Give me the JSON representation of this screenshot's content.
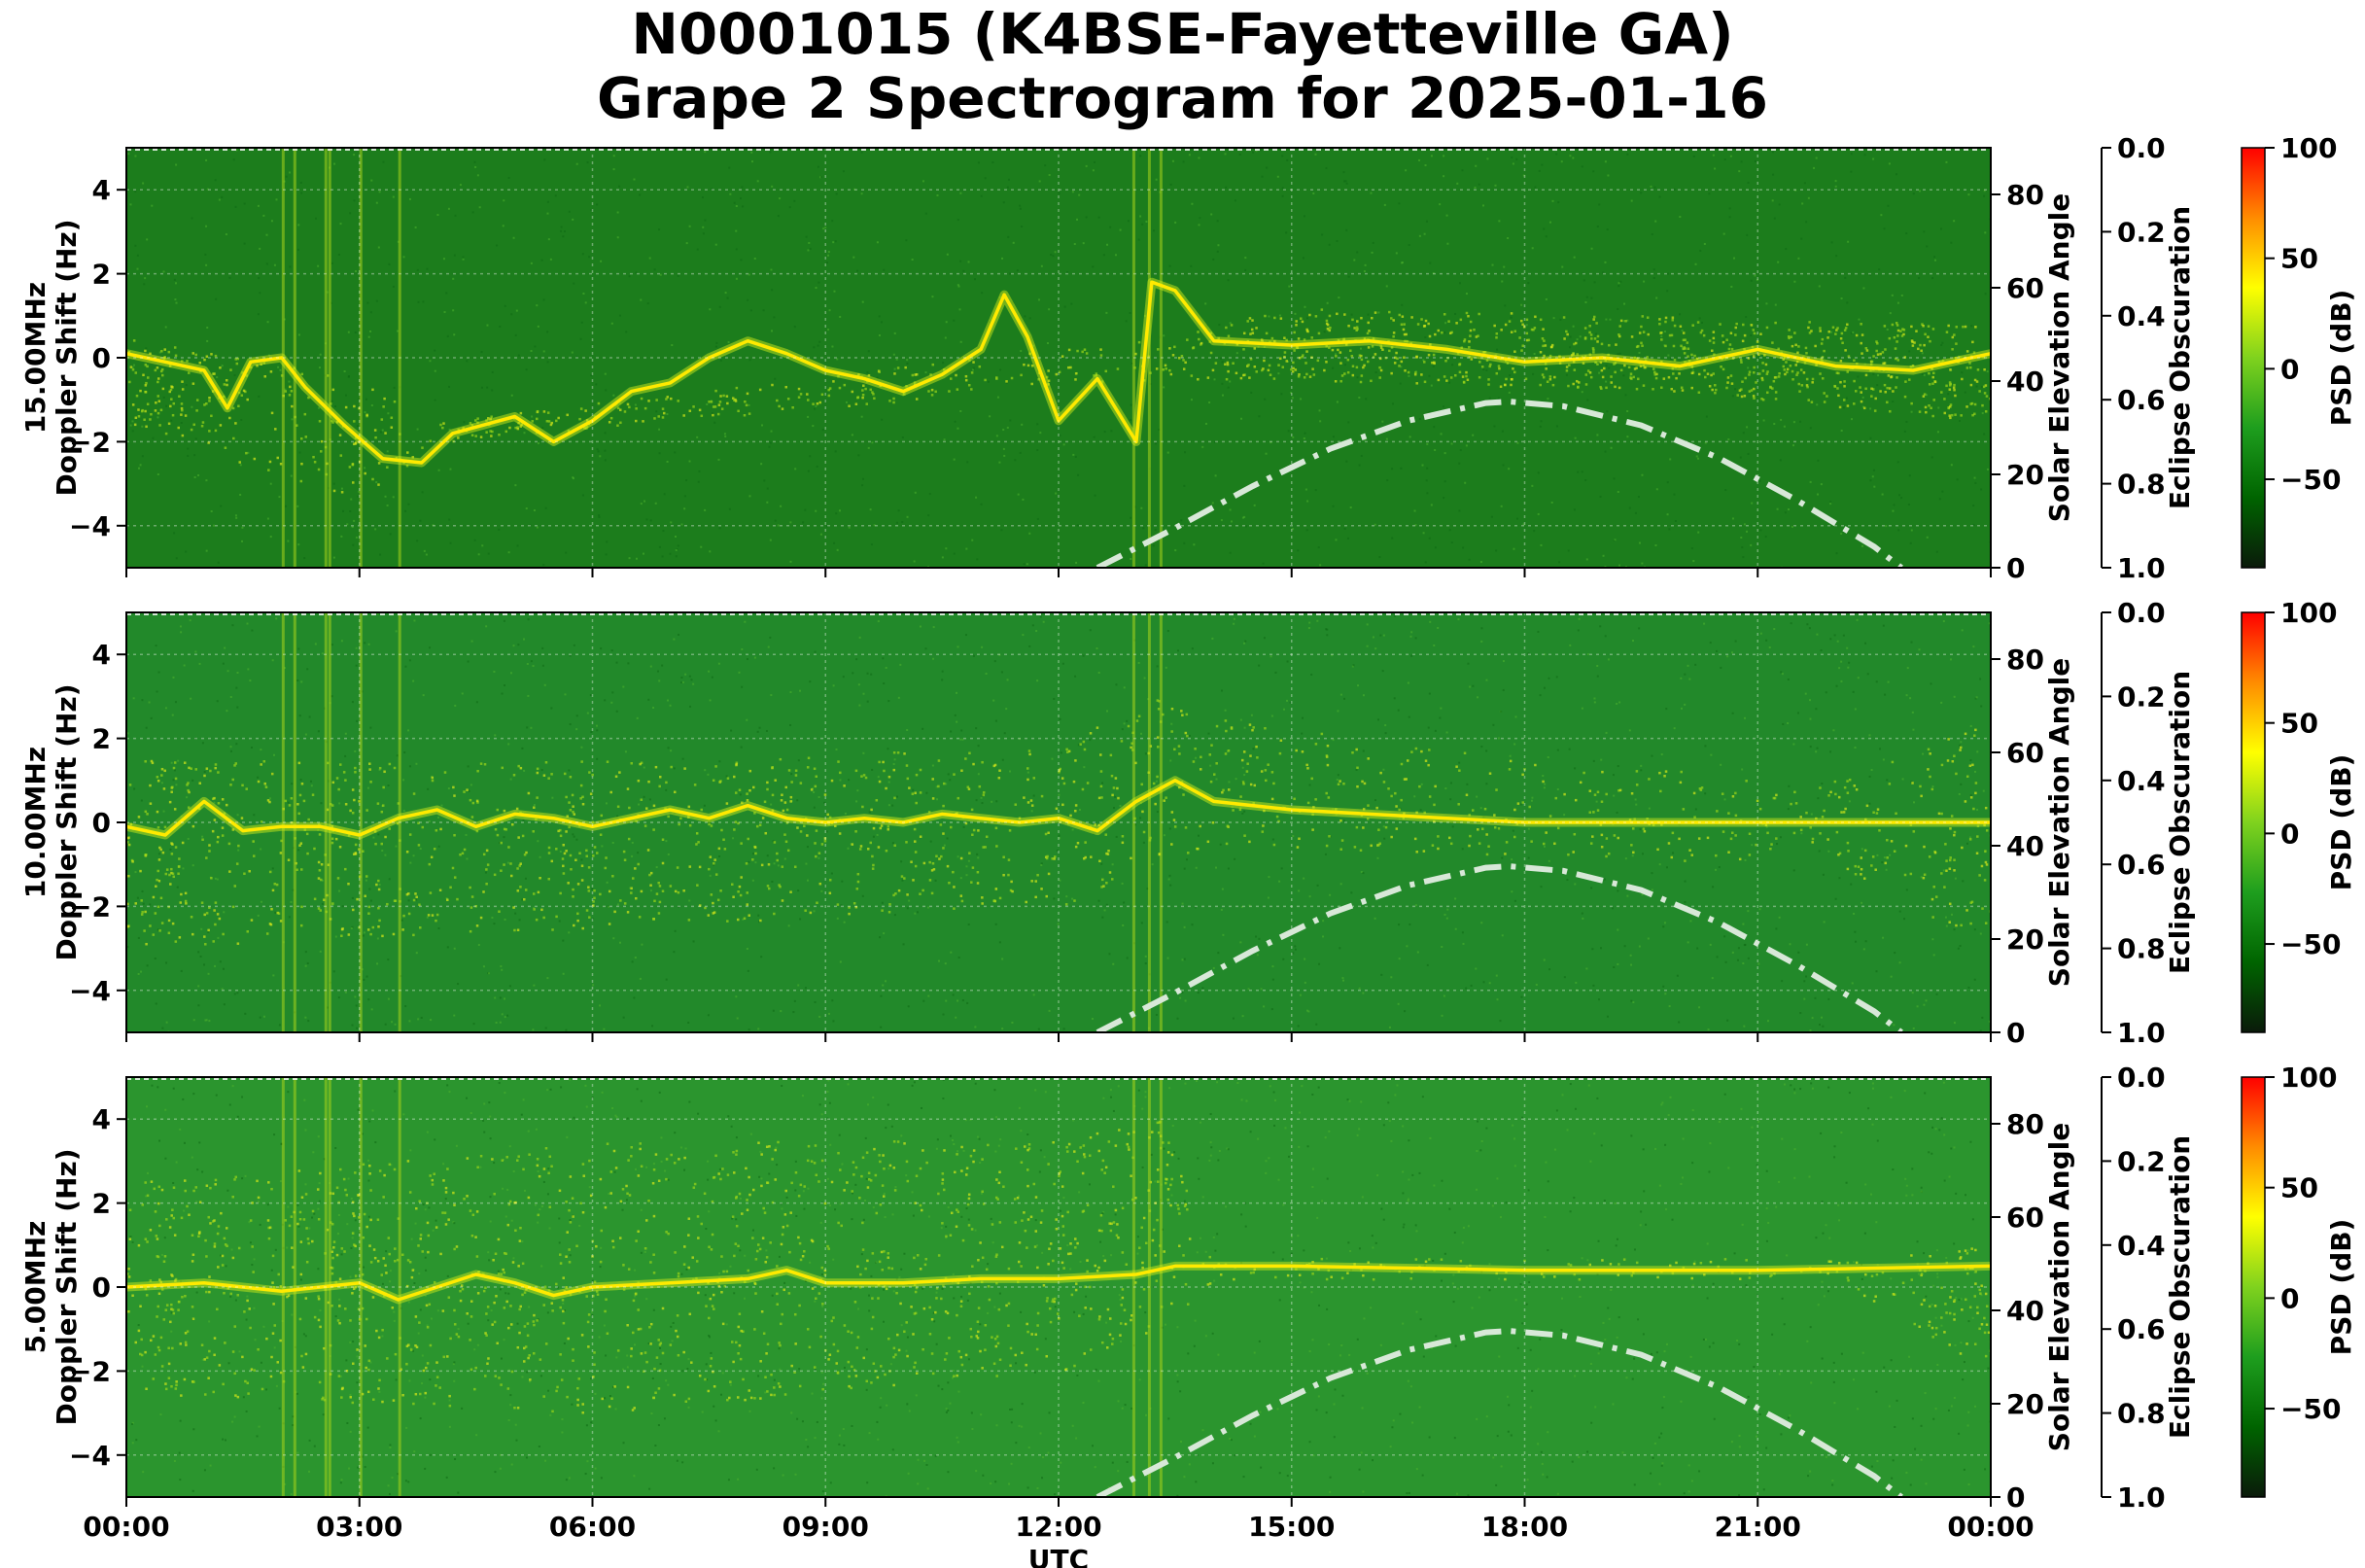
{
  "chart_data": {
    "type": "heatmap",
    "title": [
      "N0001015 (K4BSE-Fayetteville GA)",
      "Grape 2 Spectrogram for 2025-01-16"
    ],
    "xlabel": "UTC",
    "x_ticks": [
      "00:00",
      "03:00",
      "06:00",
      "09:00",
      "12:00",
      "15:00",
      "18:00",
      "21:00",
      "00:00"
    ],
    "xlim_hours": [
      0,
      24
    ],
    "ylabel": "Doppler Shift (Hz)",
    "ylim": [
      -5,
      5
    ],
    "y_ticks": [
      "4",
      "2",
      "0",
      "−2",
      "−4"
    ],
    "right_axis": {
      "label": "Solar Elevation Angle",
      "ylim": [
        0,
        90
      ],
      "ticks": [
        "80",
        "60",
        "40",
        "20",
        "0"
      ]
    },
    "eclipse_axis": {
      "label": "Eclipse Obscuration",
      "ylim": [
        1.0,
        0.0
      ],
      "ticks": [
        "0.0",
        "0.2",
        "0.4",
        "0.6",
        "0.8",
        "1.0"
      ]
    },
    "colorbar": {
      "label": "PSD (dB)",
      "range": [
        -90,
        100
      ],
      "ticks": [
        "100",
        "50",
        "0",
        "−50"
      ],
      "colors": [
        "#0a1a0a",
        "#006400",
        "#1e9e1e",
        "#7fd21e",
        "#ffff00",
        "#ff8c00",
        "#ff0000"
      ]
    },
    "grid": true,
    "solar_elevation": {
      "style": "dash-dot",
      "color": "#d8e8d8",
      "x_hours": [
        12.5,
        13.5,
        14.5,
        15.5,
        16.5,
        17.5,
        17.8,
        18.5,
        19.5,
        20.5,
        21.5,
        22.5,
        22.85
      ],
      "y_deg": [
        0,
        8.5,
        17.5,
        25.5,
        31.5,
        35.3,
        35.6,
        34.6,
        30.5,
        23.5,
        14.5,
        4.5,
        0
      ]
    },
    "panels": [
      {
        "freq_label": "15.00MHz",
        "background": "#1c7d1c",
        "trace": {
          "x_hours": [
            0,
            0.5,
            1,
            1.3,
            1.6,
            2,
            2.3,
            2.8,
            3.3,
            3.8,
            4.2,
            5,
            5.5,
            6,
            6.5,
            7,
            7.5,
            8,
            8.5,
            9,
            9.5,
            10,
            10.5,
            11,
            11.3,
            11.6,
            12,
            12.5,
            13,
            13.2,
            13.5,
            14,
            15,
            16,
            17,
            18,
            19,
            20,
            21,
            22,
            23,
            24
          ],
          "y_hz": [
            0.1,
            -0.1,
            -0.3,
            -1.2,
            -0.1,
            0,
            -0.7,
            -1.6,
            -2.4,
            -2.5,
            -1.8,
            -1.4,
            -2.0,
            -1.5,
            -0.8,
            -0.6,
            0,
            0.4,
            0.1,
            -0.3,
            -0.5,
            -0.8,
            -0.4,
            0.2,
            1.5,
            0.5,
            -1.5,
            -0.5,
            -2.0,
            1.8,
            1.6,
            0.4,
            0.3,
            0.4,
            0.2,
            -0.1,
            0,
            -0.2,
            0.2,
            -0.2,
            -0.3,
            0.1
          ]
        },
        "scatter_band": {
          "x_hours": [
            0,
            3,
            4,
            13.2,
            15,
            20,
            24
          ],
          "low_hz": [
            -1.5,
            -3.5,
            -2.0,
            -0.5,
            -0.5,
            -0.8,
            -1.5
          ],
          "high_hz": [
            0.5,
            -0.5,
            -1.5,
            0.5,
            1.2,
            1.0,
            0.8
          ],
          "density": [
            0.7,
            0.5,
            0.3,
            0.2,
            0.8,
            0.9,
            0.8
          ]
        }
      },
      {
        "freq_label": "10.00MHz",
        "background": "#22892a",
        "trace": {
          "x_hours": [
            0,
            0.5,
            1,
            1.5,
            2,
            2.5,
            3,
            3.5,
            4,
            4.5,
            5,
            5.5,
            6,
            6.5,
            7,
            7.5,
            8,
            8.5,
            9,
            9.5,
            10,
            10.5,
            11,
            11.5,
            12,
            12.5,
            13,
            13.5,
            14,
            15,
            16,
            17,
            18,
            19,
            20,
            21,
            22,
            23,
            24
          ],
          "y_hz": [
            -0.1,
            -0.3,
            0.5,
            -0.2,
            -0.1,
            -0.1,
            -0.3,
            0.1,
            0.3,
            -0.1,
            0.2,
            0.1,
            -0.1,
            0.1,
            0.3,
            0.1,
            0.4,
            0.1,
            0,
            0.1,
            0,
            0.2,
            0.1,
            0,
            0.1,
            -0.2,
            0.5,
            1.0,
            0.5,
            0.3,
            0.2,
            0.1,
            0,
            0,
            0,
            0,
            0,
            0,
            0
          ]
        },
        "scatter_band": {
          "x_hours": [
            0,
            6,
            12,
            13.2,
            14,
            18,
            22,
            24
          ],
          "low_hz": [
            -3.0,
            -2.5,
            -2.0,
            -1.0,
            -0.5,
            -0.8,
            -1.0,
            -3.0
          ],
          "high_hz": [
            1.5,
            1.5,
            1.8,
            3.0,
            2.5,
            1.5,
            1.0,
            2.5
          ],
          "density": [
            0.8,
            0.7,
            0.6,
            0.6,
            0.5,
            0.3,
            0.3,
            0.8
          ]
        }
      },
      {
        "freq_label": "5.00MHz",
        "background": "#2b952e",
        "trace": {
          "x_hours": [
            0,
            1,
            2,
            3,
            3.5,
            4,
            4.5,
            5,
            5.5,
            6,
            7,
            8,
            8.5,
            9,
            10,
            11,
            12,
            13,
            13.5,
            14,
            15,
            18,
            21,
            24
          ],
          "y_hz": [
            0,
            0.1,
            -0.1,
            0.1,
            -0.3,
            0,
            0.3,
            0.1,
            -0.2,
            0,
            0.1,
            0.2,
            0.4,
            0.1,
            0.1,
            0.2,
            0.2,
            0.3,
            0.5,
            0.5,
            0.5,
            0.4,
            0.4,
            0.5
          ]
        },
        "scatter_band": {
          "x_hours": [
            0,
            6,
            12,
            13.3,
            14,
            22,
            24
          ],
          "low_hz": [
            -2.5,
            -3.0,
            -2.0,
            -1.0,
            0.2,
            0.2,
            -2.0
          ],
          "high_hz": [
            2.5,
            3.5,
            3.5,
            4.0,
            0.7,
            0.7,
            1.0
          ],
          "density": [
            0.9,
            0.9,
            0.9,
            0.9,
            0.1,
            0.1,
            0.7
          ]
        }
      }
    ]
  }
}
